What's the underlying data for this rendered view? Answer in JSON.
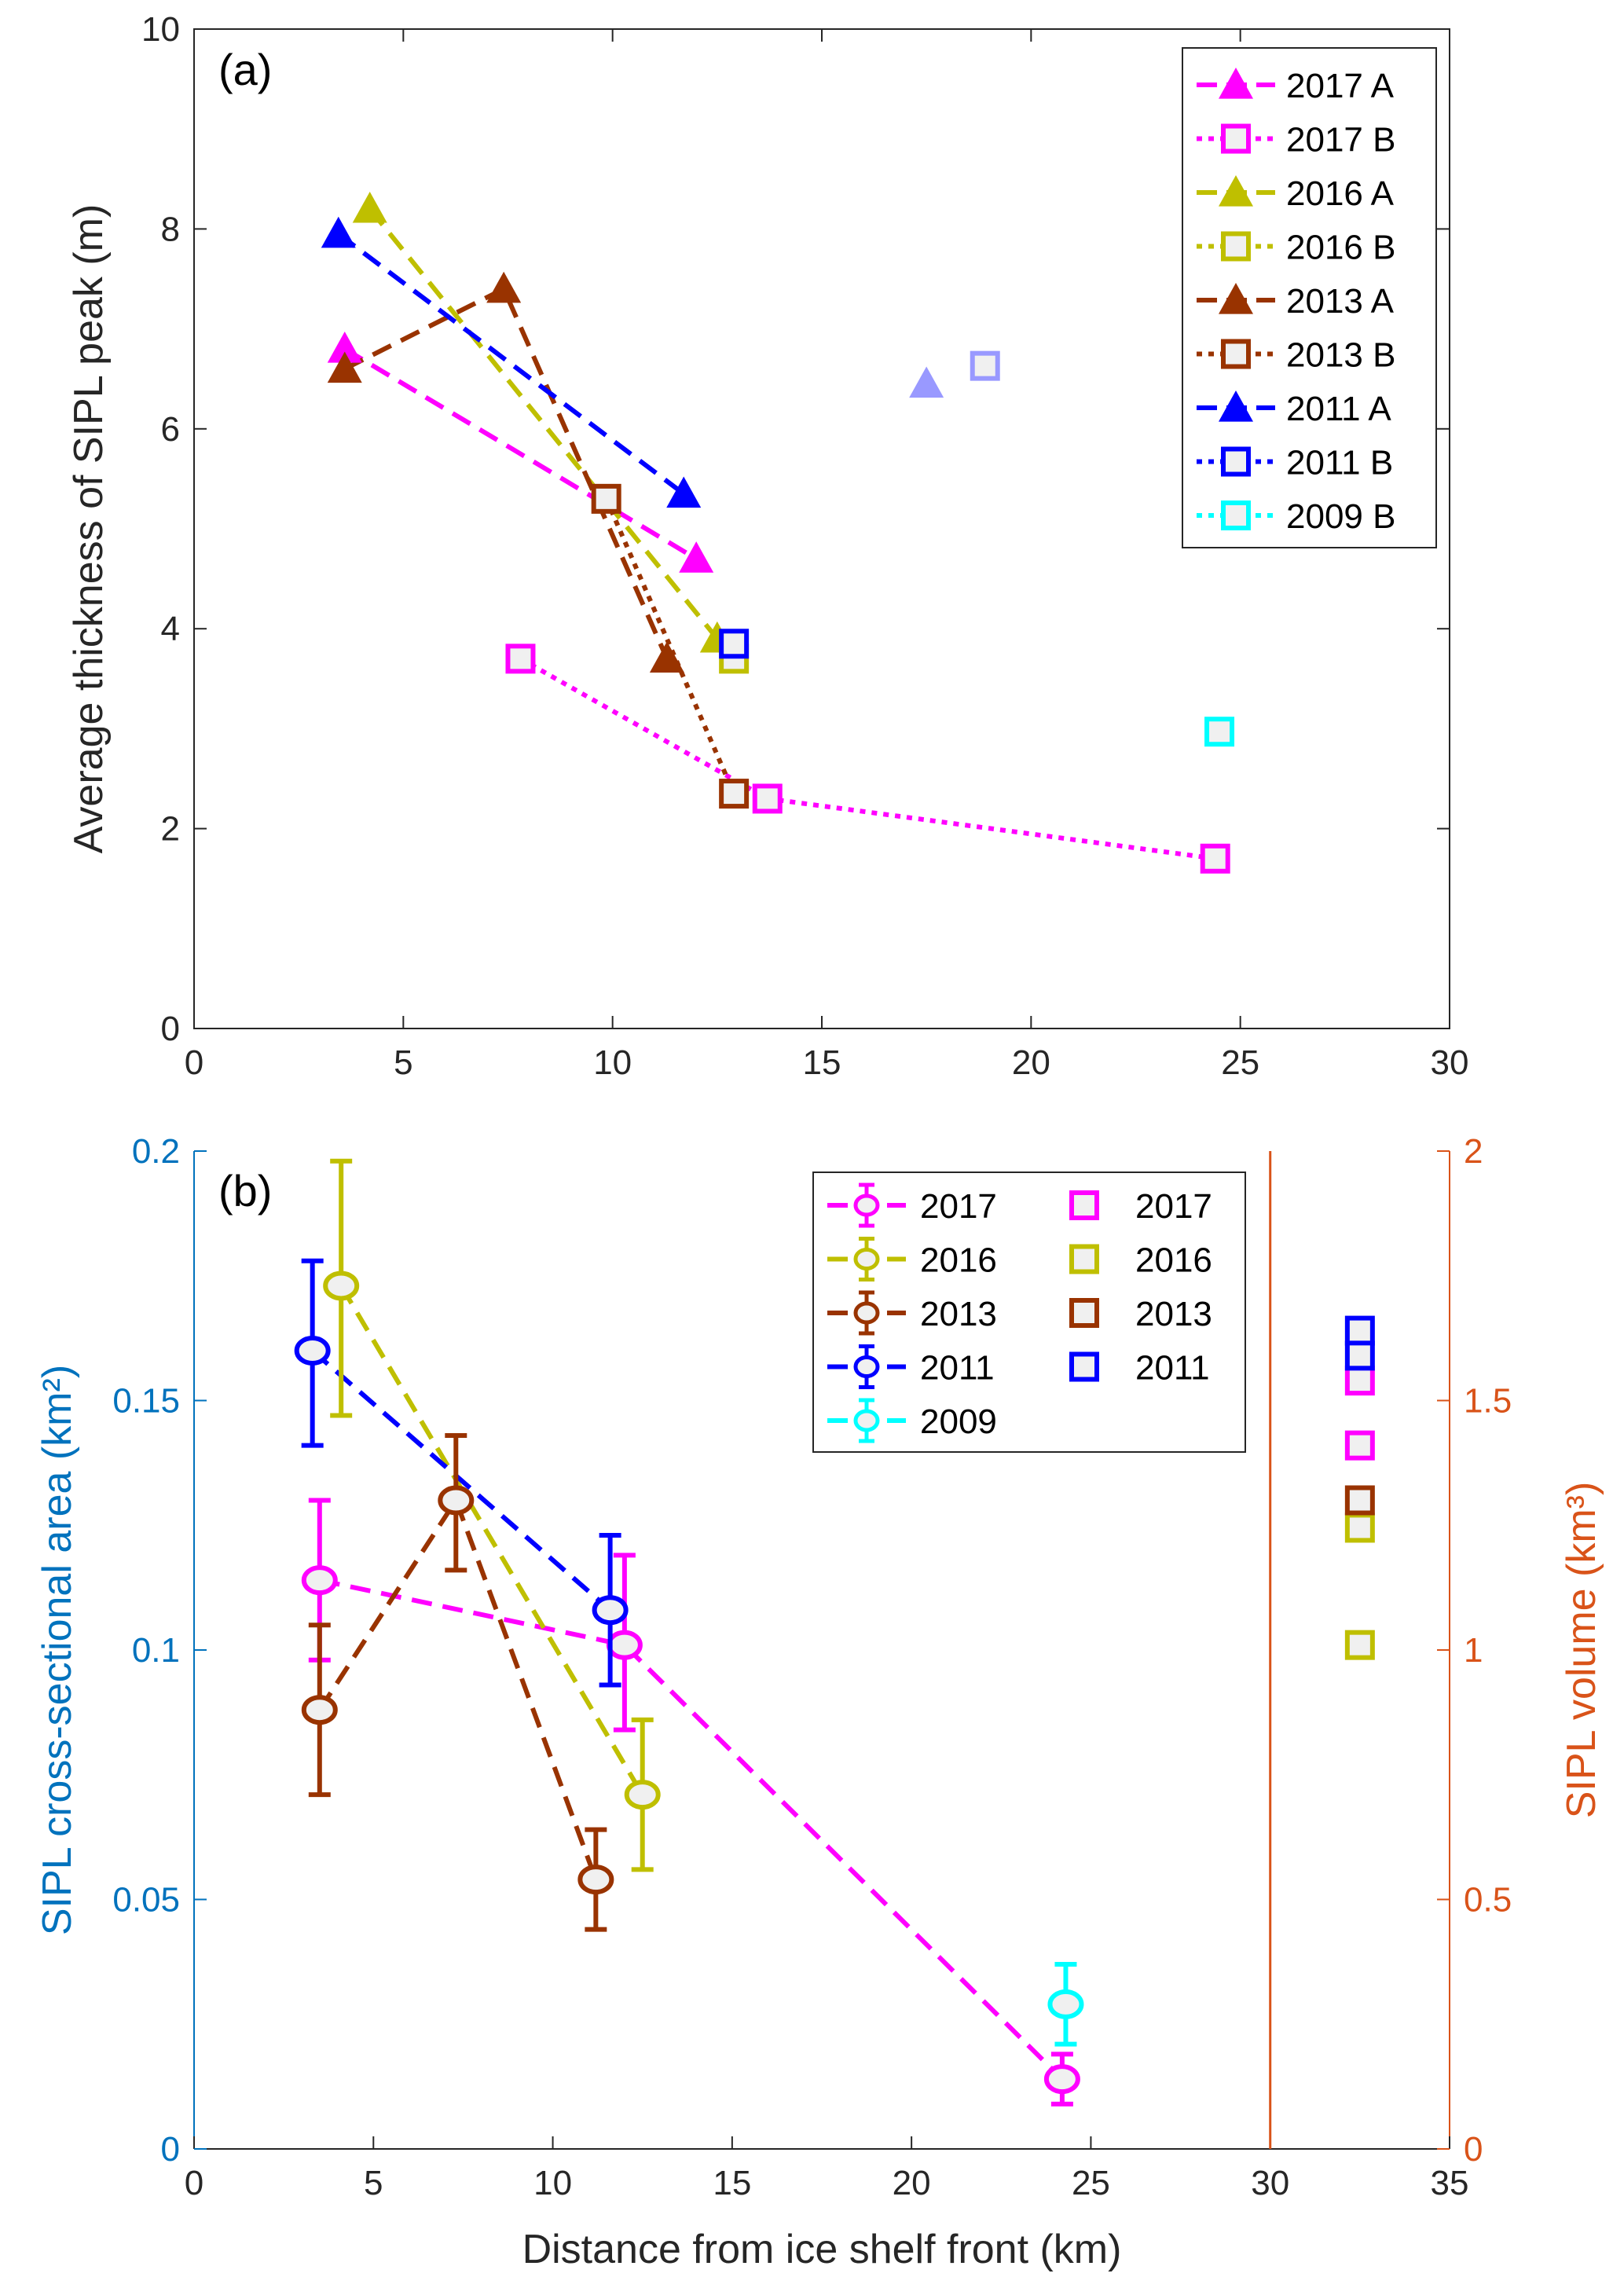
{
  "chart_data": [
    {
      "type": "line",
      "panel_label": "(a)",
      "xlabel": "",
      "ylabel": "Average thickness of SIPL peak (m)",
      "xlim": [
        0,
        30
      ],
      "ylim": [
        0,
        10
      ],
      "xticks": [
        0,
        5,
        10,
        15,
        20,
        25,
        30
      ],
      "yticks": [
        0,
        2,
        4,
        6,
        8,
        10
      ],
      "grid": false,
      "legend_position": "top-right",
      "series": [
        {
          "name": "2017 A",
          "color": "#ff00ff",
          "marker": "triangle",
          "line": "dashed",
          "points": [
            [
              3.6,
              6.8
            ],
            [
              12.0,
              4.7
            ]
          ]
        },
        {
          "name": "2017 B",
          "color": "#ff00ff",
          "marker": "square",
          "line": "dotted",
          "points": [
            [
              7.8,
              3.7
            ],
            [
              13.7,
              2.3
            ],
            [
              24.4,
              1.7
            ]
          ]
        },
        {
          "name": "2016 A",
          "color": "#bfbf00",
          "marker": "triangle",
          "line": "dashed",
          "points": [
            [
              4.2,
              8.2
            ],
            [
              12.5,
              3.9
            ]
          ]
        },
        {
          "name": "2016 B",
          "color": "#bfbf00",
          "marker": "square",
          "line": "dotted",
          "points": [
            [
              12.9,
              3.7
            ]
          ]
        },
        {
          "name": "2013 A",
          "color": "#993300",
          "marker": "triangle",
          "line": "dashed",
          "points": [
            [
              3.6,
              6.6
            ],
            [
              7.4,
              7.4
            ],
            [
              11.3,
              3.7
            ]
          ]
        },
        {
          "name": "2013 B",
          "color": "#993300",
          "marker": "square",
          "line": "dotted",
          "points": [
            [
              9.85,
              5.3
            ],
            [
              12.9,
              2.35
            ]
          ]
        },
        {
          "name": "2011 A",
          "color": "#0000ff",
          "marker": "triangle",
          "line": "dashed",
          "points": [
            [
              3.45,
              7.95
            ],
            [
              11.7,
              5.35
            ]
          ]
        },
        {
          "name": "2011 B",
          "color": "#0000ff",
          "marker": "square",
          "line": "dotted",
          "points": [
            [
              12.9,
              3.85
            ]
          ]
        },
        {
          "name": "2009 B",
          "color": "#00ffff",
          "marker": "square",
          "line": "dotted",
          "points": [
            [
              24.5,
              2.97
            ]
          ]
        }
      ],
      "extra_points": [
        {
          "marker": "triangle",
          "color": "#9999ff",
          "x": 17.5,
          "y": 6.45
        },
        {
          "marker": "square",
          "color": "#9999ff",
          "x": 18.9,
          "y": 6.63
        }
      ]
    },
    {
      "type": "line",
      "panel_label": "(b)",
      "xlabel": "Distance from ice shelf front (km)",
      "ylabel": "SIPL cross-sectional area (km²)",
      "y2label": "SIPL volume (km³)",
      "xlim": [
        0,
        35
      ],
      "ylim": [
        0,
        0.2
      ],
      "y2lim": [
        0,
        2
      ],
      "xticks": [
        0,
        5,
        10,
        15,
        20,
        25,
        30,
        35
      ],
      "yticks": [
        "0",
        "0.05",
        "0.1",
        "0.15",
        "0.2"
      ],
      "y2ticks": [
        "0",
        "0.5",
        "1",
        "1.5",
        "2"
      ],
      "left_axis_color": "#0072bd",
      "right_axis_color": "#d95319",
      "vertical_line_x": 30,
      "grid": false,
      "legend_position": "top-center",
      "series": [
        {
          "name": "2017",
          "color": "#ff00ff",
          "points": [
            {
              "x": 3.5,
              "y": 0.114,
              "lo": 0.098,
              "hi": 0.13
            },
            {
              "x": 12.0,
              "y": 0.101,
              "lo": 0.084,
              "hi": 0.119
            },
            {
              "x": 24.2,
              "y": 0.014,
              "lo": 0.009,
              "hi": 0.019
            }
          ]
        },
        {
          "name": "2016",
          "color": "#bfbf00",
          "points": [
            {
              "x": 4.1,
              "y": 0.173,
              "lo": 0.147,
              "hi": 0.198
            },
            {
              "x": 12.5,
              "y": 0.071,
              "lo": 0.056,
              "hi": 0.086
            }
          ]
        },
        {
          "name": "2013",
          "color": "#993300",
          "points": [
            {
              "x": 3.5,
              "y": 0.088,
              "lo": 0.071,
              "hi": 0.105
            },
            {
              "x": 7.3,
              "y": 0.13,
              "lo": 0.116,
              "hi": 0.143
            },
            {
              "x": 11.2,
              "y": 0.054,
              "lo": 0.044,
              "hi": 0.064
            }
          ]
        },
        {
          "name": "2011",
          "color": "#0000ff",
          "points": [
            {
              "x": 3.3,
              "y": 0.16,
              "lo": 0.141,
              "hi": 0.178
            },
            {
              "x": 11.6,
              "y": 0.108,
              "lo": 0.093,
              "hi": 0.123
            }
          ]
        },
        {
          "name": "2009",
          "color": "#00ffff",
          "points": [
            {
              "x": 24.3,
              "y": 0.029,
              "lo": 0.021,
              "hi": 0.037
            }
          ]
        }
      ],
      "volume_series": [
        {
          "name": "2017",
          "color": "#ff00ff",
          "x": 32.5,
          "values": [
            1.54,
            1.41
          ]
        },
        {
          "name": "2016",
          "color": "#bfbf00",
          "x": 32.5,
          "values": [
            1.245,
            1.01
          ]
        },
        {
          "name": "2013",
          "color": "#993300",
          "x": 32.5,
          "values": [
            1.3
          ]
        },
        {
          "name": "2011",
          "color": "#0000ff",
          "x": 32.5,
          "values": [
            1.64,
            1.59
          ]
        }
      ]
    }
  ]
}
